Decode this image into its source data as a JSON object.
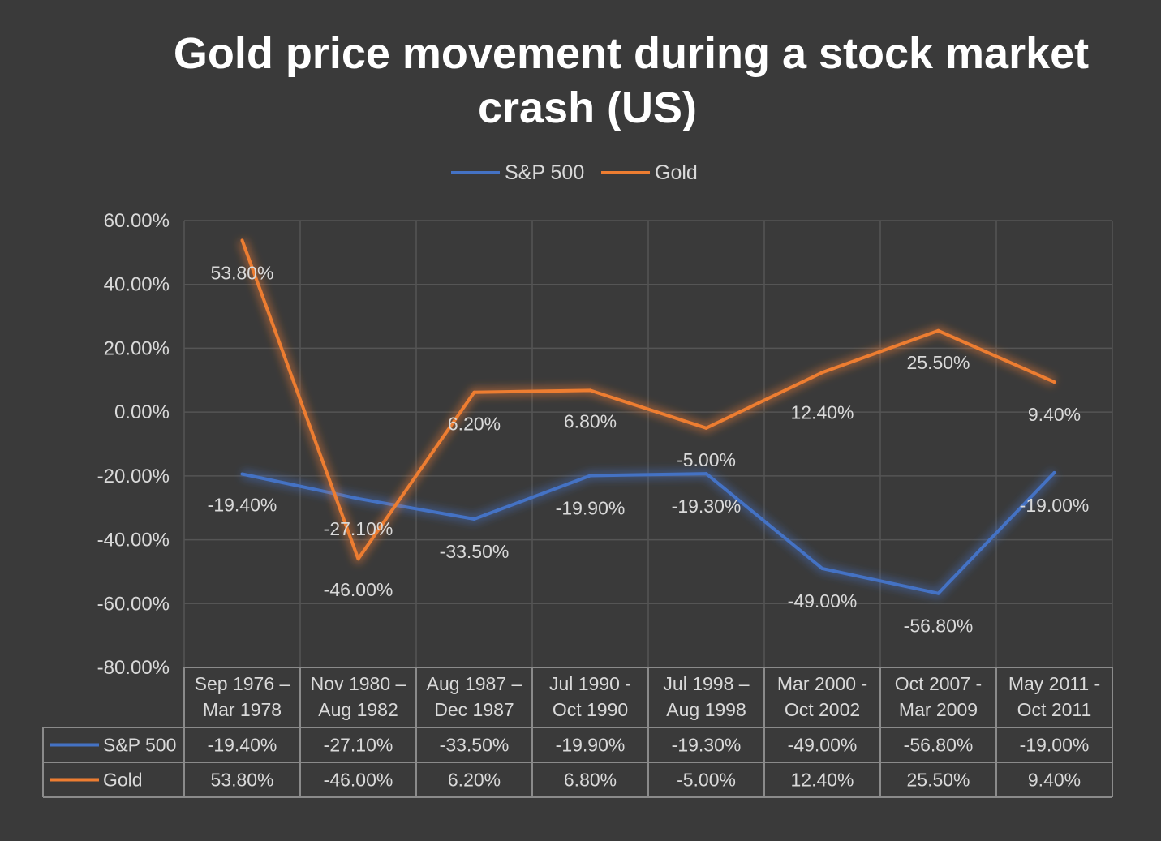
{
  "chart_data": {
    "type": "line",
    "title_lines": [
      "Gold price movement during a stock market",
      "crash (US)"
    ],
    "categories": [
      [
        "Sep 1976 –",
        "Mar 1978"
      ],
      [
        "Nov 1980 –",
        "Aug 1982"
      ],
      [
        "Aug 1987 –",
        "Dec 1987"
      ],
      [
        "Jul 1990 -",
        "Oct 1990"
      ],
      [
        "Jul 1998 –",
        "Aug 1998"
      ],
      [
        "Mar 2000 -",
        "Oct 2002"
      ],
      [
        "Oct 2007 -",
        "Mar 2009"
      ],
      [
        "May 2011 -",
        "Oct 2011"
      ]
    ],
    "series": [
      {
        "name": "S&P 500",
        "color": "#4472c4",
        "values": [
          -19.4,
          -27.1,
          -33.5,
          -19.9,
          -19.3,
          -49.0,
          -56.8,
          -19.0
        ],
        "labels": [
          "-19.40%",
          "-27.10%",
          "-33.50%",
          "-19.90%",
          "-19.30%",
          "-49.00%",
          "-56.80%",
          "-19.00%"
        ]
      },
      {
        "name": "Gold",
        "color": "#ed7d31",
        "values": [
          53.8,
          -46.0,
          6.2,
          6.8,
          -5.0,
          12.4,
          25.5,
          9.4
        ],
        "labels": [
          "53.80%",
          "-46.00%",
          "6.20%",
          "6.80%",
          "-5.00%",
          "12.40%",
          "25.50%",
          "9.40%"
        ]
      }
    ],
    "y_ticks": [
      "60.00%",
      "40.00%",
      "20.00%",
      "0.00%",
      "-20.00%",
      "-40.00%",
      "-60.00%",
      "-80.00%"
    ],
    "ylim": [
      -80,
      60
    ],
    "grid": true,
    "legend": "top-center",
    "data_table": true
  }
}
